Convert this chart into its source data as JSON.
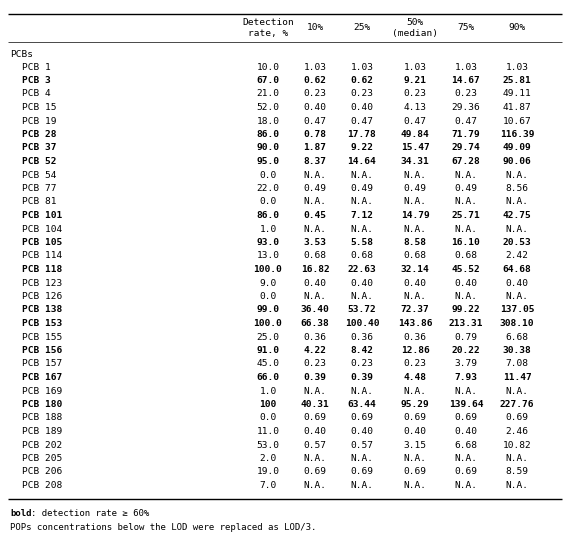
{
  "columns": [
    "Detection\nrate, %",
    "10%",
    "25%",
    "50%\n(median)",
    "75%",
    "90%"
  ],
  "rows": [
    {
      "label": "PCB 1",
      "bold": false,
      "values": [
        "10.0",
        "1.03",
        "1.03",
        "1.03",
        "1.03",
        "1.03"
      ]
    },
    {
      "label": "PCB 3",
      "bold": true,
      "values": [
        "67.0",
        "0.62",
        "0.62",
        "9.21",
        "14.67",
        "25.81"
      ]
    },
    {
      "label": "PCB 4",
      "bold": false,
      "values": [
        "21.0",
        "0.23",
        "0.23",
        "0.23",
        "0.23",
        "49.11"
      ]
    },
    {
      "label": "PCB 15",
      "bold": false,
      "values": [
        "52.0",
        "0.40",
        "0.40",
        "4.13",
        "29.36",
        "41.87"
      ]
    },
    {
      "label": "PCB 19",
      "bold": false,
      "values": [
        "18.0",
        "0.47",
        "0.47",
        "0.47",
        "0.47",
        "10.67"
      ]
    },
    {
      "label": "PCB 28",
      "bold": true,
      "values": [
        "86.0",
        "0.78",
        "17.78",
        "49.84",
        "71.79",
        "116.39"
      ]
    },
    {
      "label": "PCB 37",
      "bold": true,
      "values": [
        "90.0",
        "1.87",
        "9.22",
        "15.47",
        "29.74",
        "49.09"
      ]
    },
    {
      "label": "PCB 52",
      "bold": true,
      "values": [
        "95.0",
        "8.37",
        "14.64",
        "34.31",
        "67.28",
        "90.06"
      ]
    },
    {
      "label": "PCB 54",
      "bold": false,
      "values": [
        "0.0",
        "N.A.",
        "N.A.",
        "N.A.",
        "N.A.",
        "N.A."
      ]
    },
    {
      "label": "PCB 77",
      "bold": false,
      "values": [
        "22.0",
        "0.49",
        "0.49",
        "0.49",
        "0.49",
        "8.56"
      ]
    },
    {
      "label": "PCB 81",
      "bold": false,
      "values": [
        "0.0",
        "N.A.",
        "N.A.",
        "N.A.",
        "N.A.",
        "N.A."
      ]
    },
    {
      "label": "PCB 101",
      "bold": true,
      "values": [
        "86.0",
        "0.45",
        "7.12",
        "14.79",
        "25.71",
        "42.75"
      ]
    },
    {
      "label": "PCB 104",
      "bold": false,
      "values": [
        "1.0",
        "N.A.",
        "N.A.",
        "N.A.",
        "N.A.",
        "N.A."
      ]
    },
    {
      "label": "PCB 105",
      "bold": true,
      "values": [
        "93.0",
        "3.53",
        "5.58",
        "8.58",
        "16.10",
        "20.53"
      ]
    },
    {
      "label": "PCB 114",
      "bold": false,
      "values": [
        "13.0",
        "0.68",
        "0.68",
        "0.68",
        "0.68",
        "2.42"
      ]
    },
    {
      "label": "PCB 118",
      "bold": true,
      "values": [
        "100.0",
        "16.82",
        "22.63",
        "32.14",
        "45.52",
        "64.68"
      ]
    },
    {
      "label": "PCB 123",
      "bold": false,
      "values": [
        "9.0",
        "0.40",
        "0.40",
        "0.40",
        "0.40",
        "0.40"
      ]
    },
    {
      "label": "PCB 126",
      "bold": false,
      "values": [
        "0.0",
        "N.A.",
        "N.A.",
        "N.A.",
        "N.A.",
        "N.A."
      ]
    },
    {
      "label": "PCB 138",
      "bold": true,
      "values": [
        "99.0",
        "36.40",
        "53.72",
        "72.37",
        "99.22",
        "137.05"
      ]
    },
    {
      "label": "PCB 153",
      "bold": true,
      "values": [
        "100.0",
        "66.38",
        "100.40",
        "143.86",
        "213.31",
        "308.10"
      ]
    },
    {
      "label": "PCB 155",
      "bold": false,
      "values": [
        "25.0",
        "0.36",
        "0.36",
        "0.36",
        "0.79",
        "6.68"
      ]
    },
    {
      "label": "PCB 156",
      "bold": true,
      "values": [
        "91.0",
        "4.22",
        "8.42",
        "12.86",
        "20.22",
        "30.38"
      ]
    },
    {
      "label": "PCB 157",
      "bold": false,
      "values": [
        "45.0",
        "0.23",
        "0.23",
        "0.23",
        "3.79",
        "7.08"
      ]
    },
    {
      "label": "PCB 167",
      "bold": true,
      "values": [
        "66.0",
        "0.39",
        "0.39",
        "4.48",
        "7.93",
        "11.47"
      ]
    },
    {
      "label": "PCB 169",
      "bold": false,
      "values": [
        "1.0",
        "N.A.",
        "N.A.",
        "N.A.",
        "N.A.",
        "N.A."
      ]
    },
    {
      "label": "PCB 180",
      "bold": true,
      "values": [
        "100",
        "40.31",
        "63.44",
        "95.29",
        "139.64",
        "227.76"
      ]
    },
    {
      "label": "PCB 188",
      "bold": false,
      "values": [
        "0.0",
        "0.69",
        "0.69",
        "0.69",
        "0.69",
        "0.69"
      ]
    },
    {
      "label": "PCB 189",
      "bold": false,
      "values": [
        "11.0",
        "0.40",
        "0.40",
        "0.40",
        "0.40",
        "2.46"
      ]
    },
    {
      "label": "PCB 202",
      "bold": false,
      "values": [
        "53.0",
        "0.57",
        "0.57",
        "3.15",
        "6.68",
        "10.82"
      ]
    },
    {
      "label": "PCB 205",
      "bold": false,
      "values": [
        "2.0",
        "N.A.",
        "N.A.",
        "N.A.",
        "N.A.",
        "N.A."
      ]
    },
    {
      "label": "PCB 206",
      "bold": false,
      "values": [
        "19.0",
        "0.69",
        "0.69",
        "0.69",
        "0.69",
        "8.59"
      ]
    },
    {
      "label": "PCB 208",
      "bold": false,
      "values": [
        "7.0",
        "N.A.",
        "N.A.",
        "N.A.",
        "N.A.",
        "N.A."
      ]
    }
  ],
  "group_label": "PCBs",
  "footnote1_bold": "bold",
  "footnote1_rest": ": detection rate ≥ 60%",
  "footnote2": "POPs concentrations below the LOD were replaced as LOD/3.",
  "bg_color": "#ffffff",
  "text_color": "#000000",
  "fig_width": 5.66,
  "fig_height": 5.58,
  "dpi": 100
}
